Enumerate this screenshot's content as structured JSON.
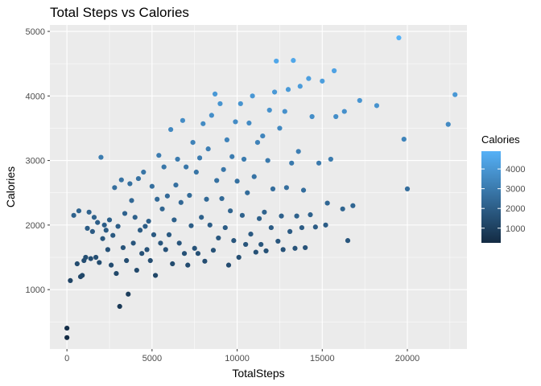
{
  "chart_data": {
    "type": "scatter",
    "title": "Total Steps vs Calories",
    "xlabel": "TotalSteps",
    "ylabel": "Calories",
    "xlim": [
      -1000,
      23500
    ],
    "ylim": [
      80,
      5100
    ],
    "x_ticks": [
      0,
      5000,
      10000,
      15000,
      20000
    ],
    "y_ticks": [
      1000,
      2000,
      3000,
      4000,
      5000
    ],
    "grid": true,
    "background": "#EBEBEB",
    "legend": {
      "title": "Calories",
      "position": "right",
      "ticks": [
        1000,
        2000,
        3000,
        4000
      ],
      "range": [
        257,
        4900
      ],
      "color_low": "#132B43",
      "color_high": "#56B1F7"
    },
    "points": [
      [
        0,
        257
      ],
      [
        0,
        403
      ],
      [
        200,
        1140
      ],
      [
        400,
        2150
      ],
      [
        600,
        1400
      ],
      [
        700,
        2220
      ],
      [
        800,
        1200
      ],
      [
        900,
        1220
      ],
      [
        1000,
        1450
      ],
      [
        1100,
        1500
      ],
      [
        1200,
        1950
      ],
      [
        1300,
        2200
      ],
      [
        1400,
        1480
      ],
      [
        1500,
        1900
      ],
      [
        1600,
        2120
      ],
      [
        1700,
        1500
      ],
      [
        1800,
        2040
      ],
      [
        1900,
        1420
      ],
      [
        2000,
        3050
      ],
      [
        2100,
        1790
      ],
      [
        2200,
        2000
      ],
      [
        2300,
        1920
      ],
      [
        2400,
        1620
      ],
      [
        2500,
        2080
      ],
      [
        2600,
        1380
      ],
      [
        2700,
        1840
      ],
      [
        2800,
        2580
      ],
      [
        2900,
        1250
      ],
      [
        3000,
        1980
      ],
      [
        3100,
        740
      ],
      [
        3200,
        2700
      ],
      [
        3300,
        1650
      ],
      [
        3400,
        2180
      ],
      [
        3500,
        1450
      ],
      [
        3600,
        930
      ],
      [
        3700,
        2640
      ],
      [
        3800,
        2380
      ],
      [
        3900,
        1720
      ],
      [
        4000,
        2120
      ],
      [
        4100,
        1300
      ],
      [
        4200,
        2720
      ],
      [
        4300,
        1920
      ],
      [
        4400,
        1560
      ],
      [
        4500,
        2820
      ],
      [
        4600,
        1980
      ],
      [
        4700,
        1620
      ],
      [
        4800,
        2060
      ],
      [
        4900,
        1450
      ],
      [
        5000,
        2600
      ],
      [
        5100,
        1850
      ],
      [
        5200,
        1220
      ],
      [
        5300,
        2400
      ],
      [
        5400,
        3080
      ],
      [
        5500,
        1720
      ],
      [
        5600,
        2250
      ],
      [
        5700,
        2900
      ],
      [
        5800,
        1620
      ],
      [
        5900,
        2450
      ],
      [
        6000,
        1850
      ],
      [
        6100,
        3480
      ],
      [
        6200,
        1400
      ],
      [
        6300,
        2080
      ],
      [
        6400,
        2620
      ],
      [
        6500,
        3020
      ],
      [
        6600,
        1720
      ],
      [
        6700,
        2350
      ],
      [
        6800,
        3620
      ],
      [
        6900,
        1560
      ],
      [
        7000,
        2900
      ],
      [
        7100,
        1380
      ],
      [
        7200,
        2460
      ],
      [
        7300,
        1990
      ],
      [
        7400,
        3280
      ],
      [
        7500,
        1640
      ],
      [
        7600,
        2820
      ],
      [
        7700,
        1560
      ],
      [
        7800,
        3040
      ],
      [
        7900,
        2120
      ],
      [
        8000,
        3570
      ],
      [
        8100,
        1440
      ],
      [
        8200,
        2400
      ],
      [
        8300,
        3180
      ],
      [
        8400,
        2000
      ],
      [
        8500,
        3700
      ],
      [
        8600,
        1610
      ],
      [
        8700,
        4030
      ],
      [
        8800,
        2690
      ],
      [
        8900,
        1800
      ],
      [
        9000,
        3880
      ],
      [
        9100,
        2410
      ],
      [
        9200,
        2860
      ],
      [
        9300,
        1960
      ],
      [
        9400,
        3320
      ],
      [
        9500,
        1380
      ],
      [
        9600,
        2220
      ],
      [
        9700,
        3060
      ],
      [
        9800,
        1760
      ],
      [
        9900,
        3600
      ],
      [
        10000,
        2680
      ],
      [
        10100,
        1500
      ],
      [
        10200,
        3880
      ],
      [
        10300,
        2150
      ],
      [
        10400,
        3020
      ],
      [
        10500,
        1700
      ],
      [
        10600,
        2500
      ],
      [
        10700,
        3580
      ],
      [
        10800,
        1860
      ],
      [
        10900,
        4000
      ],
      [
        11000,
        2750
      ],
      [
        11100,
        1580
      ],
      [
        11200,
        3280
      ],
      [
        11300,
        2100
      ],
      [
        11400,
        1700
      ],
      [
        11500,
        3380
      ],
      [
        11600,
        2200
      ],
      [
        11700,
        1600
      ],
      [
        11800,
        3000
      ],
      [
        11900,
        3780
      ],
      [
        12000,
        1960
      ],
      [
        12100,
        2560
      ],
      [
        12200,
        4060
      ],
      [
        12300,
        4540
      ],
      [
        12400,
        1750
      ],
      [
        12500,
        3500
      ],
      [
        12600,
        2140
      ],
      [
        12700,
        1620
      ],
      [
        12800,
        3760
      ],
      [
        12900,
        2580
      ],
      [
        13000,
        4100
      ],
      [
        13100,
        1900
      ],
      [
        13200,
        2960
      ],
      [
        13300,
        4550
      ],
      [
        13400,
        1640
      ],
      [
        13500,
        2140
      ],
      [
        13600,
        3140
      ],
      [
        13700,
        4150
      ],
      [
        13800,
        1960
      ],
      [
        13900,
        2540
      ],
      [
        14000,
        1650
      ],
      [
        14200,
        4270
      ],
      [
        14300,
        2160
      ],
      [
        14400,
        3680
      ],
      [
        14600,
        1970
      ],
      [
        14800,
        2960
      ],
      [
        15000,
        4230
      ],
      [
        15200,
        2000
      ],
      [
        15300,
        2340
      ],
      [
        15500,
        3020
      ],
      [
        15700,
        4390
      ],
      [
        15800,
        3680
      ],
      [
        16200,
        2250
      ],
      [
        16300,
        3760
      ],
      [
        16500,
        1760
      ],
      [
        16800,
        2300
      ],
      [
        17200,
        3930
      ],
      [
        18200,
        3850
      ],
      [
        19500,
        4900
      ],
      [
        19800,
        3330
      ],
      [
        20000,
        2560
      ],
      [
        22400,
        3560
      ],
      [
        22800,
        4020
      ]
    ]
  }
}
